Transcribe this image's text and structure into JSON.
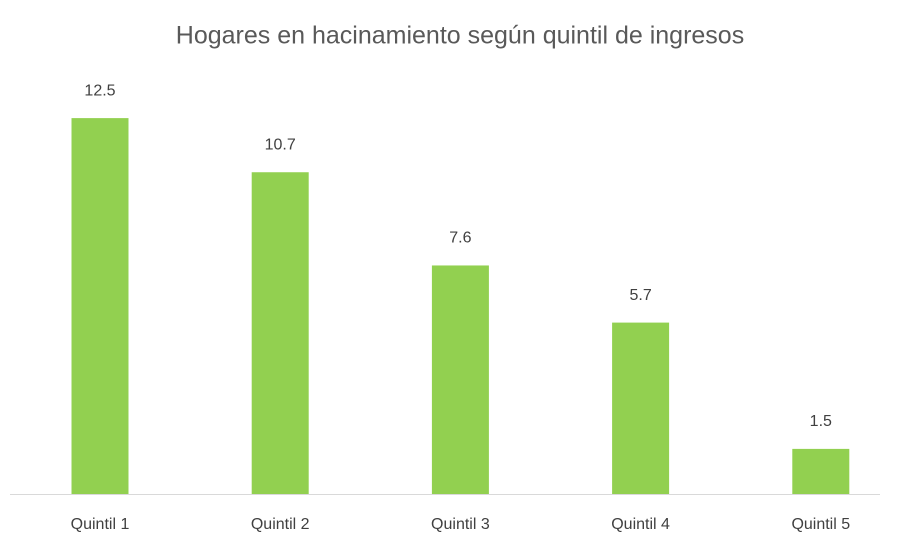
{
  "chart_data": {
    "type": "bar",
    "title": "Hogares en hacinamiento según quintil de ingresos",
    "categories": [
      "Quintil 1",
      "Quintil 2",
      "Quintil 3",
      "Quintil 4",
      "Quintil 5"
    ],
    "values": [
      12.5,
      10.7,
      7.6,
      5.7,
      1.5
    ],
    "color": "#92d050",
    "ylim": [
      0,
      14
    ]
  }
}
